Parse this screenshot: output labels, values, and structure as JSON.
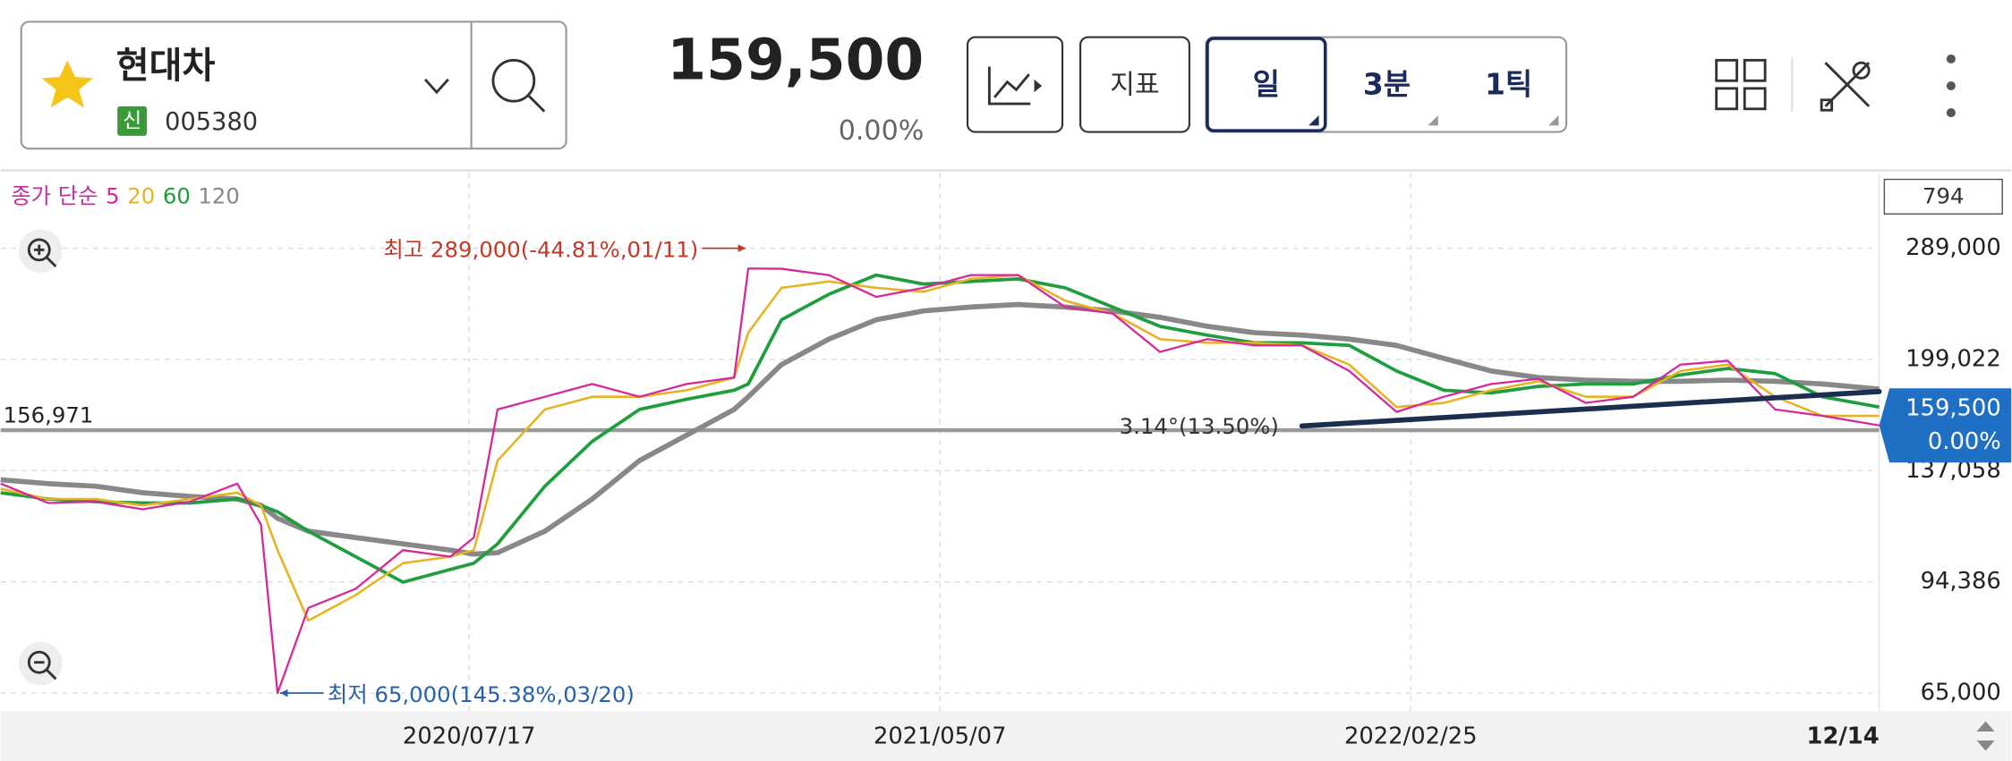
{
  "header": {
    "name": "현대차",
    "badge": "신",
    "code": "005380",
    "price": "159,500",
    "change": "0.00%",
    "buttons": [
      "지표",
      "일",
      "3분",
      "1틱"
    ]
  },
  "chart_data": {
    "type": "line",
    "legend_prefix": "종가 단순",
    "bar_count": "794",
    "log_y": true,
    "grid": true,
    "x": [
      0,
      20,
      40,
      60,
      80,
      100,
      110,
      117,
      130,
      150,
      170,
      190,
      200,
      210,
      230,
      250,
      270,
      290,
      310,
      316,
      330,
      350,
      370,
      390,
      410,
      430,
      450,
      470,
      490,
      510,
      530,
      550,
      570,
      590,
      610,
      630,
      650,
      670,
      690,
      710,
      730,
      750,
      770,
      794
    ],
    "xlim": [
      0,
      794
    ],
    "xticks": [
      {
        "value": 198,
        "label": "2020/07/17"
      },
      {
        "value": 397,
        "label": "2021/05/07"
      },
      {
        "value": 596,
        "label": "2022/02/25"
      },
      {
        "value": 794,
        "label": "12/14"
      }
    ],
    "ylim": [
      61200,
      372000
    ],
    "yticks": [
      {
        "value": 65000,
        "label": "65,000"
      },
      {
        "value": 94386,
        "label": "94,386"
      },
      {
        "value": 137058,
        "label": "137,058"
      },
      {
        "value": 199022,
        "label": "199,022"
      },
      {
        "value": 289000,
        "label": "289,000"
      }
    ],
    "series": [
      {
        "name": "5",
        "color": "#d6289a",
        "width": 1.6,
        "values": [
          131200,
          123000,
          123500,
          120400,
          123500,
          131200,
          114400,
          65000,
          86500,
          92200,
          105000,
          102700,
          109500,
          168300,
          175600,
          183300,
          175600,
          183300,
          187300,
          270000,
          269800,
          264100,
          245500,
          253000,
          264100,
          264100,
          237200,
          232200,
          204100,
          213100,
          208600,
          208600,
          191400,
          166900,
          175600,
          183300,
          186500,
          172000,
          175600,
          195600,
          198100,
          168300,
          164700,
          159500
        ]
      },
      {
        "name": "20",
        "color": "#e6b422",
        "width": 1.8,
        "values": [
          129000,
          124600,
          124600,
          122000,
          124600,
          127300,
          122000,
          105000,
          82900,
          90300,
          100500,
          102700,
          105000,
          141800,
          168300,
          175600,
          175600,
          179500,
          187300,
          217700,
          253000,
          258500,
          253000,
          249800,
          260700,
          264100,
          242300,
          232200,
          213100,
          210400,
          210400,
          208600,
          195600,
          169700,
          172000,
          179500,
          185000,
          175600,
          175600,
          191400,
          195600,
          175600,
          164700,
          164700
        ]
      },
      {
        "name": "60",
        "color": "#1e9e3c",
        "width": 2.6,
        "values": [
          127300,
          124600,
          123500,
          123000,
          123000,
          124600,
          122000,
          119400,
          111900,
          102700,
          94300,
          98400,
          100500,
          107200,
          130100,
          151200,
          168300,
          174200,
          179500,
          183300,
          227300,
          247600,
          264100,
          256300,
          258500,
          260700,
          253000,
          237200,
          222400,
          215900,
          210400,
          210400,
          208600,
          191400,
          179500,
          177900,
          181800,
          183300,
          183300,
          188900,
          193100,
          189800,
          175600,
          169700
        ]
      },
      {
        "name": "120",
        "color": "#888888",
        "width": 4,
        "values": [
          132900,
          131200,
          130100,
          127300,
          125700,
          124600,
          122000,
          116800,
          111900,
          109500,
          107200,
          105000,
          103600,
          104100,
          111900,
          124600,
          141800,
          154400,
          168300,
          175600,
          195600,
          213100,
          227300,
          234200,
          237200,
          239300,
          237200,
          234200,
          229200,
          222400,
          217700,
          215900,
          213100,
          208600,
          199800,
          191400,
          187300,
          185700,
          185000,
          185000,
          185700,
          185000,
          183300,
          180200
        ]
      }
    ],
    "ref_line": {
      "value": 156971,
      "label": "156,971"
    },
    "trendline": {
      "label": "3.14°(13.50%)",
      "color": "#1c2e50",
      "x": [
        550,
        794
      ],
      "values": [
        159200,
        178700
      ]
    },
    "annotations": [
      {
        "text": "최고 289,000(-44.81%,01/11)",
        "color": "#c0392b",
        "x": 316,
        "value": 289000
      },
      {
        "text": "최저 65,000(145.38%,03/20)",
        "color": "#2a62a8",
        "x": 117,
        "value": 65000
      }
    ],
    "price_tag": {
      "value": 159500,
      "label": "159,500",
      "change": "0.00%",
      "color": "#1f6fc5"
    }
  }
}
